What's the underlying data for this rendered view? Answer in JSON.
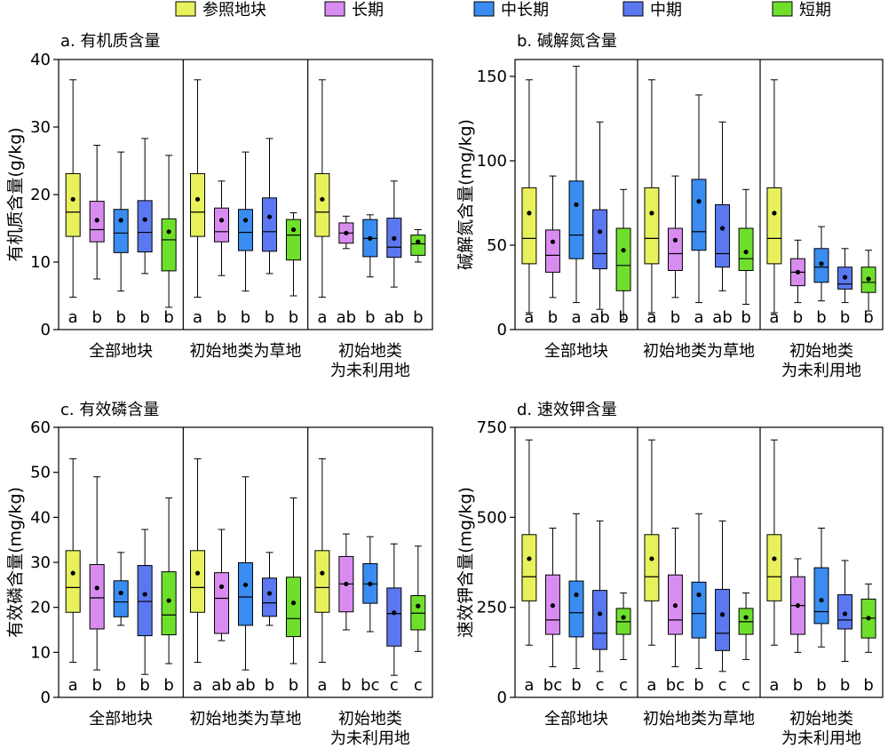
{
  "legend": {
    "entries": [
      {
        "label": "参照地块",
        "color": "#e8f15c"
      },
      {
        "label": "长期",
        "color": "#d98cf0"
      },
      {
        "label": "中长期",
        "color": "#3a8cf0"
      },
      {
        "label": "中期",
        "color": "#5b78f0"
      },
      {
        "label": "短期",
        "color": "#6ee02c"
      }
    ]
  },
  "chart_data": [
    {
      "type": "boxplot",
      "title": "a. 有机质含量",
      "ylabel": "有机质含量(g/kg)",
      "ylim": [
        0,
        40
      ],
      "yticks": [
        0,
        10,
        20,
        30,
        40
      ],
      "groups": [
        {
          "label": [
            "全部地块"
          ],
          "boxes": [
            {
              "series": "参照地块",
              "min": 4.8,
              "q1": 13.8,
              "median": 17.4,
              "q3": 23.1,
              "max": 37.0,
              "mean": 19.3,
              "letter": "a"
            },
            {
              "series": "长期",
              "min": 7.5,
              "q1": 13.0,
              "median": 14.8,
              "q3": 19.0,
              "max": 27.3,
              "mean": 16.2,
              "letter": "b"
            },
            {
              "series": "中长期",
              "min": 5.7,
              "q1": 11.4,
              "median": 14.3,
              "q3": 17.8,
              "max": 26.3,
              "mean": 16.2,
              "letter": "b"
            },
            {
              "series": "中期",
              "min": 8.3,
              "q1": 11.5,
              "median": 14.4,
              "q3": 19.1,
              "max": 28.3,
              "mean": 16.3,
              "letter": "b"
            },
            {
              "series": "短期",
              "min": 3.3,
              "q1": 8.7,
              "median": 13.3,
              "q3": 16.4,
              "max": 25.8,
              "mean": 14.5,
              "letter": "b"
            }
          ]
        },
        {
          "label": [
            "初始地类为草地"
          ],
          "boxes": [
            {
              "series": "参照地块",
              "min": 4.8,
              "q1": 13.8,
              "median": 17.4,
              "q3": 23.1,
              "max": 37.0,
              "mean": 19.3,
              "letter": "a"
            },
            {
              "series": "长期",
              "min": 8.0,
              "q1": 13.0,
              "median": 14.5,
              "q3": 18.0,
              "max": 22.0,
              "mean": 16.2,
              "letter": "b"
            },
            {
              "series": "中长期",
              "min": 5.7,
              "q1": 11.7,
              "median": 14.4,
              "q3": 17.8,
              "max": 26.3,
              "mean": 16.2,
              "letter": "b"
            },
            {
              "series": "中期",
              "min": 8.3,
              "q1": 11.6,
              "median": 14.5,
              "q3": 19.5,
              "max": 28.3,
              "mean": 16.7,
              "letter": "b"
            },
            {
              "series": "短期",
              "min": 5.0,
              "q1": 10.3,
              "median": 14.0,
              "q3": 16.3,
              "max": 17.3,
              "mean": 14.8,
              "letter": "b"
            }
          ]
        },
        {
          "label": [
            "初始地类",
            "为未利用地"
          ],
          "boxes": [
            {
              "series": "参照地块",
              "min": 4.8,
              "q1": 13.8,
              "median": 17.4,
              "q3": 23.1,
              "max": 37.0,
              "mean": 19.3,
              "letter": "a"
            },
            {
              "series": "长期",
              "min": 12.0,
              "q1": 12.8,
              "median": 14.3,
              "q3": 15.8,
              "max": 16.8,
              "mean": 14.3,
              "letter": "ab"
            },
            {
              "series": "中长期",
              "min": 7.8,
              "q1": 10.8,
              "median": 13.5,
              "q3": 16.3,
              "max": 17.0,
              "mean": 13.5,
              "letter": "b"
            },
            {
              "series": "中期",
              "min": 6.3,
              "q1": 10.7,
              "median": 12.2,
              "q3": 16.5,
              "max": 22.0,
              "mean": 13.5,
              "letter": "ab"
            },
            {
              "series": "短期",
              "min": 10.0,
              "q1": 11.0,
              "median": 12.7,
              "q3": 14.0,
              "max": 14.8,
              "mean": 13.0,
              "letter": "b"
            }
          ]
        }
      ]
    },
    {
      "type": "boxplot",
      "title": "b. 碱解氮含量",
      "ylabel": "碱解氮含量(mg/kg)",
      "ylim": [
        0,
        160
      ],
      "yticks": [
        0,
        50,
        100,
        150
      ],
      "groups": [
        {
          "label": [
            "全部地块"
          ],
          "boxes": [
            {
              "series": "参照地块",
              "min": 10,
              "q1": 39,
              "median": 54,
              "q3": 84,
              "max": 148,
              "mean": 69,
              "letter": "a"
            },
            {
              "series": "长期",
              "min": 19,
              "q1": 34,
              "median": 44,
              "q3": 59,
              "max": 91,
              "mean": 52,
              "letter": "b"
            },
            {
              "series": "中长期",
              "min": 16,
              "q1": 42,
              "median": 56,
              "q3": 88,
              "max": 156,
              "mean": 74,
              "letter": "a"
            },
            {
              "series": "中期",
              "min": 12,
              "q1": 36,
              "median": 45,
              "q3": 71,
              "max": 123,
              "mean": 58,
              "letter": "ab"
            },
            {
              "series": "短期",
              "min": 6,
              "q1": 23,
              "median": 38,
              "q3": 60,
              "max": 83,
              "mean": 47,
              "letter": "b"
            }
          ]
        },
        {
          "label": [
            "初始地类为草地"
          ],
          "boxes": [
            {
              "series": "参照地块",
              "min": 10,
              "q1": 39,
              "median": 54,
              "q3": 84,
              "max": 148,
              "mean": 69,
              "letter": "a"
            },
            {
              "series": "长期",
              "min": 19,
              "q1": 35,
              "median": 45,
              "q3": 60,
              "max": 91,
              "mean": 53,
              "letter": "b"
            },
            {
              "series": "中长期",
              "min": 16,
              "q1": 47,
              "median": 58,
              "q3": 89,
              "max": 139,
              "mean": 76,
              "letter": "a"
            },
            {
              "series": "中期",
              "min": 23,
              "q1": 37,
              "median": 45,
              "q3": 74,
              "max": 123,
              "mean": 60,
              "letter": "ab"
            },
            {
              "series": "短期",
              "min": 15,
              "q1": 35,
              "median": 42,
              "q3": 60,
              "max": 83,
              "mean": 46,
              "letter": "b"
            }
          ]
        },
        {
          "label": [
            "初始地类",
            "为未利用地"
          ],
          "boxes": [
            {
              "series": "参照地块",
              "min": 10,
              "q1": 39,
              "median": 54,
              "q3": 84,
              "max": 148,
              "mean": 69,
              "letter": "a"
            },
            {
              "series": "长期",
              "min": 16,
              "q1": 26,
              "median": 34,
              "q3": 42,
              "max": 53,
              "mean": 34,
              "letter": "b"
            },
            {
              "series": "中长期",
              "min": 17,
              "q1": 28,
              "median": 37,
              "q3": 48,
              "max": 61,
              "mean": 39,
              "letter": "b"
            },
            {
              "series": "中期",
              "min": 16,
              "q1": 24,
              "median": 27,
              "q3": 37,
              "max": 48,
              "mean": 31,
              "letter": "b"
            },
            {
              "series": "短期",
              "min": 11,
              "q1": 22,
              "median": 28,
              "q3": 37,
              "max": 47,
              "mean": 30,
              "letter": "b"
            }
          ]
        }
      ]
    },
    {
      "type": "boxplot",
      "title": "c. 有效磷含量",
      "ylabel": "有效磷含量(mg/kg)",
      "ylim": [
        0,
        60
      ],
      "yticks": [
        0,
        10,
        20,
        30,
        40,
        50,
        60
      ],
      "groups": [
        {
          "label": [
            "全部地块"
          ],
          "boxes": [
            {
              "series": "参照地块",
              "min": 7.8,
              "q1": 18.9,
              "median": 24.4,
              "q3": 32.6,
              "max": 53.0,
              "mean": 27.6,
              "letter": "a"
            },
            {
              "series": "长期",
              "min": 6.1,
              "q1": 15.2,
              "median": 22.1,
              "q3": 29.5,
              "max": 49.0,
              "mean": 24.3,
              "letter": "b"
            },
            {
              "series": "中长期",
              "min": 16.0,
              "q1": 17.9,
              "median": 21.2,
              "q3": 25.9,
              "max": 32.2,
              "mean": 23.2,
              "letter": "b"
            },
            {
              "series": "中期",
              "min": 5.1,
              "q1": 13.7,
              "median": 21.3,
              "q3": 29.3,
              "max": 37.3,
              "mean": 22.9,
              "letter": "b"
            },
            {
              "series": "短期",
              "min": 7.5,
              "q1": 13.9,
              "median": 18.3,
              "q3": 27.9,
              "max": 44.3,
              "mean": 21.5,
              "letter": "b"
            }
          ]
        },
        {
          "label": [
            "初始地类为草地"
          ],
          "boxes": [
            {
              "series": "参照地块",
              "min": 7.8,
              "q1": 18.9,
              "median": 24.4,
              "q3": 32.6,
              "max": 53.0,
              "mean": 27.6,
              "letter": "a"
            },
            {
              "series": "长期",
              "min": 12.6,
              "q1": 14.2,
              "median": 22.0,
              "q3": 27.7,
              "max": 37.3,
              "mean": 24.6,
              "letter": "ab"
            },
            {
              "series": "中长期",
              "min": 6.1,
              "q1": 16.0,
              "median": 22.3,
              "q3": 29.9,
              "max": 49.0,
              "mean": 25.0,
              "letter": "ab"
            },
            {
              "series": "中期",
              "min": 16.0,
              "q1": 18.0,
              "median": 21.0,
              "q3": 26.5,
              "max": 32.2,
              "mean": 23.1,
              "letter": "b"
            },
            {
              "series": "短期",
              "min": 7.5,
              "q1": 13.5,
              "median": 17.5,
              "q3": 26.7,
              "max": 44.3,
              "mean": 21.0,
              "letter": "b"
            }
          ]
        },
        {
          "label": [
            "初始地类",
            "为未利用地"
          ],
          "boxes": [
            {
              "series": "参照地块",
              "min": 7.8,
              "q1": 18.9,
              "median": 24.4,
              "q3": 32.6,
              "max": 53.0,
              "mean": 27.6,
              "letter": "a"
            },
            {
              "series": "长期",
              "min": 15.0,
              "q1": 19.0,
              "median": 25.2,
              "q3": 31.3,
              "max": 36.3,
              "mean": 25.2,
              "letter": "b"
            },
            {
              "series": "中长期",
              "min": 14.6,
              "q1": 20.9,
              "median": 25.2,
              "q3": 29.7,
              "max": 35.7,
              "mean": 25.2,
              "letter": "bc"
            },
            {
              "series": "中期",
              "min": 4.9,
              "q1": 11.4,
              "median": 18.6,
              "q3": 24.3,
              "max": 34.1,
              "mean": 18.8,
              "letter": "c"
            },
            {
              "series": "短期",
              "min": 10.2,
              "q1": 15.0,
              "median": 18.7,
              "q3": 22.6,
              "max": 33.6,
              "mean": 20.3,
              "letter": "c"
            }
          ]
        }
      ]
    },
    {
      "type": "boxplot",
      "title": "d. 速效钾含量",
      "ylabel": "速效钾含量(mg/kg)",
      "ylim": [
        0,
        750
      ],
      "yticks": [
        0,
        250,
        500,
        750
      ],
      "groups": [
        {
          "label": [
            "全部地块"
          ],
          "boxes": [
            {
              "series": "参照地块",
              "min": 145,
              "q1": 268,
              "median": 335,
              "q3": 452,
              "max": 715,
              "mean": 385,
              "letter": "a"
            },
            {
              "series": "长期",
              "min": 85,
              "q1": 175,
              "median": 215,
              "q3": 340,
              "max": 470,
              "mean": 255,
              "letter": "bc"
            },
            {
              "series": "中长期",
              "min": 80,
              "q1": 168,
              "median": 235,
              "q3": 323,
              "max": 510,
              "mean": 285,
              "letter": "b"
            },
            {
              "series": "中期",
              "min": 72,
              "q1": 133,
              "median": 178,
              "q3": 297,
              "max": 490,
              "mean": 232,
              "letter": "c"
            },
            {
              "series": "短期",
              "min": 105,
              "q1": 175,
              "median": 210,
              "q3": 247,
              "max": 290,
              "mean": 222,
              "letter": "c"
            }
          ]
        },
        {
          "label": [
            "初始地类为草地"
          ],
          "boxes": [
            {
              "series": "参照地块",
              "min": 145,
              "q1": 268,
              "median": 335,
              "q3": 452,
              "max": 715,
              "mean": 385,
              "letter": "a"
            },
            {
              "series": "长期",
              "min": 85,
              "q1": 175,
              "median": 215,
              "q3": 340,
              "max": 470,
              "mean": 255,
              "letter": "bc"
            },
            {
              "series": "中长期",
              "min": 80,
              "q1": 165,
              "median": 233,
              "q3": 320,
              "max": 510,
              "mean": 285,
              "letter": "b"
            },
            {
              "series": "中期",
              "min": 72,
              "q1": 130,
              "median": 178,
              "q3": 300,
              "max": 490,
              "mean": 230,
              "letter": "c"
            },
            {
              "series": "短期",
              "min": 105,
              "q1": 175,
              "median": 210,
              "q3": 247,
              "max": 290,
              "mean": 222,
              "letter": "c"
            }
          ]
        },
        {
          "label": [
            "初始地类",
            "为未利用地"
          ],
          "boxes": [
            {
              "series": "参照地块",
              "min": 145,
              "q1": 268,
              "median": 335,
              "q3": 452,
              "max": 715,
              "mean": 385,
              "letter": "a"
            },
            {
              "series": "长期",
              "min": 125,
              "q1": 175,
              "median": 255,
              "q3": 335,
              "max": 385,
              "mean": 255,
              "letter": "b"
            },
            {
              "series": "中长期",
              "min": 140,
              "q1": 205,
              "median": 238,
              "q3": 360,
              "max": 470,
              "mean": 270,
              "letter": "b"
            },
            {
              "series": "中期",
              "min": 100,
              "q1": 190,
              "median": 215,
              "q3": 285,
              "max": 380,
              "mean": 232,
              "letter": "b"
            },
            {
              "series": "短期",
              "min": 125,
              "q1": 165,
              "median": 220,
              "q3": 273,
              "max": 315,
              "mean": 220,
              "letter": "b"
            }
          ]
        }
      ]
    }
  ]
}
